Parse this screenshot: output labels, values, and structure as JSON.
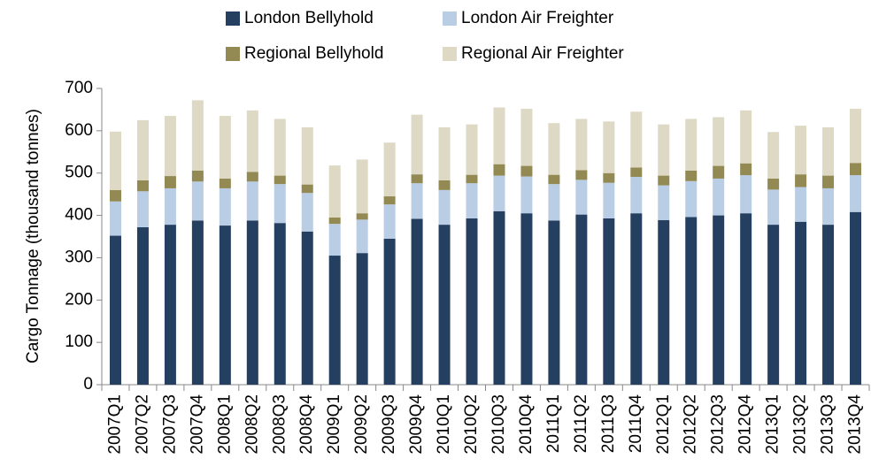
{
  "chart_data": {
    "type": "stacked_bar",
    "y_label": "Cargo Tonnage (thousand tonnes)",
    "categories": [
      "2007Q1",
      "2007Q2",
      "2007Q3",
      "2007Q4",
      "2008Q1",
      "2008Q2",
      "2008Q3",
      "2008Q4",
      "2009Q1",
      "2009Q2",
      "2009Q3",
      "2009Q4",
      "2010Q1",
      "2010Q2",
      "2010Q3",
      "2010Q4",
      "2011Q1",
      "2011Q2",
      "2011Q3",
      "2011Q4",
      "2012Q1",
      "2012Q2",
      "2012Q3",
      "2012Q4",
      "2013Q1",
      "2013Q2",
      "2013Q3",
      "2013Q4"
    ],
    "series": [
      {
        "name": "London Bellyhold",
        "color": "#243f60",
        "values": [
          352,
          372,
          378,
          388,
          376,
          388,
          382,
          362,
          305,
          311,
          345,
          392,
          378,
          393,
          410,
          405,
          388,
          402,
          393,
          405,
          389,
          396,
          400,
          405,
          378,
          385,
          378,
          408
        ]
      },
      {
        "name": "London Air Freighter",
        "color": "#b9cde5",
        "values": [
          81,
          85,
          86,
          92,
          88,
          92,
          92,
          91,
          75,
          79,
          81,
          84,
          82,
          83,
          84,
          87,
          86,
          82,
          84,
          86,
          82,
          85,
          87,
          90,
          83,
          82,
          86,
          87
        ]
      },
      {
        "name": "Regional Bellyhold",
        "color": "#938953",
        "values": [
          27,
          26,
          29,
          26,
          23,
          23,
          20,
          20,
          15,
          15,
          19,
          21,
          23,
          20,
          27,
          25,
          22,
          23,
          23,
          22,
          23,
          25,
          30,
          28,
          26,
          30,
          30,
          29
        ]
      },
      {
        "name": "Regional Air Freighter",
        "color": "#ddd9c4",
        "values": [
          138,
          142,
          142,
          166,
          148,
          145,
          134,
          135,
          123,
          127,
          127,
          141,
          125,
          119,
          134,
          135,
          122,
          121,
          122,
          132,
          121,
          122,
          115,
          125,
          110,
          115,
          114,
          128
        ]
      }
    ],
    "ylim": [
      0,
      700
    ],
    "yticks": [
      0,
      100,
      200,
      300,
      400,
      500,
      600,
      700
    ],
    "grid": false
  }
}
